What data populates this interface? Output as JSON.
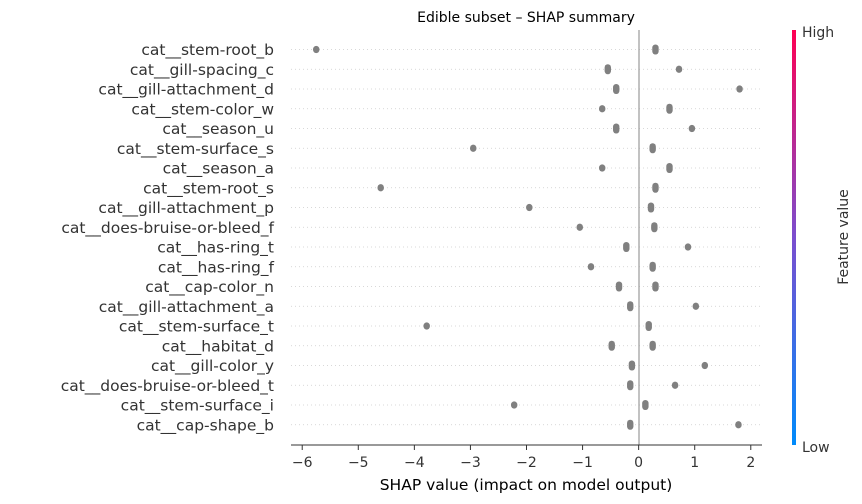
{
  "chart_data": {
    "type": "scatter",
    "subtype": "shap-beeswarm",
    "title": "Edible subset – SHAP summary",
    "xlabel": "SHAP value (impact on model output)",
    "xlim": [
      -6.2,
      2.2
    ],
    "xticks": [
      -6,
      -5,
      -4,
      -3,
      -2,
      -1,
      0,
      1,
      2
    ],
    "xtick_labels": [
      "−6",
      "−5",
      "−4",
      "−3",
      "−2",
      "−1",
      "0",
      "1",
      "2"
    ],
    "colorbar": {
      "label": "Feature value",
      "high": "High",
      "low": "Low"
    },
    "colors": {
      "high": "#ff0052",
      "low": "#008bfb",
      "points": "#808080"
    },
    "features": [
      "cat__stem-root_b",
      "cat__gill-spacing_c",
      "cat__gill-attachment_d",
      "cat__stem-color_w",
      "cat__season_u",
      "cat__stem-surface_s",
      "cat__season_a",
      "cat__stem-root_s",
      "cat__gill-attachment_p",
      "cat__does-bruise-or-bleed_f",
      "cat__has-ring_t",
      "cat__has-ring_f",
      "cat__cap-color_n",
      "cat__gill-attachment_a",
      "cat__stem-surface_t",
      "cat__habitat_d",
      "cat__gill-color_y",
      "cat__does-bruise-or-bleed_t",
      "cat__stem-surface_i",
      "cat__cap-shape_b"
    ],
    "points": [
      [
        -5.75,
        0.3
      ],
      [
        -0.55,
        0.72
      ],
      [
        -0.4,
        1.8
      ],
      [
        -0.65,
        0.55
      ],
      [
        -0.4,
        0.95
      ],
      [
        -2.95,
        0.25
      ],
      [
        -0.65,
        0.55
      ],
      [
        -4.6,
        0.3
      ],
      [
        -1.95,
        0.22
      ],
      [
        -1.05,
        0.28
      ],
      [
        -0.22,
        0.88
      ],
      [
        -0.85,
        0.25
      ],
      [
        -0.35,
        0.3
      ],
      [
        -0.15,
        1.02
      ],
      [
        -3.78,
        0.18
      ],
      [
        -0.48,
        0.25
      ],
      [
        -0.12,
        1.18
      ],
      [
        -0.15,
        0.65
      ],
      [
        -2.22,
        0.12
      ],
      [
        -0.15,
        1.78
      ]
    ]
  }
}
